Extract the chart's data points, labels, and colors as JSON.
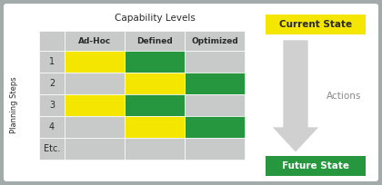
{
  "title": "Capability Levels",
  "col_headers": [
    "Ad-Hoc",
    "Defined",
    "Optimized"
  ],
  "row_labels": [
    "",
    "1",
    "2",
    "3",
    "4",
    "Etc."
  ],
  "planning_steps_label": "Planning Steps",
  "current_state_label": "Current State",
  "future_state_label": "Future State",
  "actions_label": "Actions",
  "cell_colors": [
    [
      "#c8caca",
      "#c8caca",
      "#c8caca"
    ],
    [
      "#f5e600",
      "#26973e",
      "#c8caca"
    ],
    [
      "#c8caca",
      "#f5e600",
      "#26973e"
    ],
    [
      "#f5e600",
      "#26973e",
      "#c8caca"
    ],
    [
      "#c8caca",
      "#f5e600",
      "#26973e"
    ],
    [
      "#c8caca",
      "#c8caca",
      "#c8caca"
    ]
  ],
  "yellow": "#f5e600",
  "green": "#26973e",
  "gray_cell": "#c8caca",
  "gray_border": "#a2aaaa",
  "white_bg": "#ffffff",
  "arrow_fill": "#d0d0d0",
  "current_state_bg": "#f5e600",
  "future_state_bg": "#26973e",
  "text_dark": "#2a2a2a",
  "text_white": "#ffffff",
  "actions_color": "#888888"
}
